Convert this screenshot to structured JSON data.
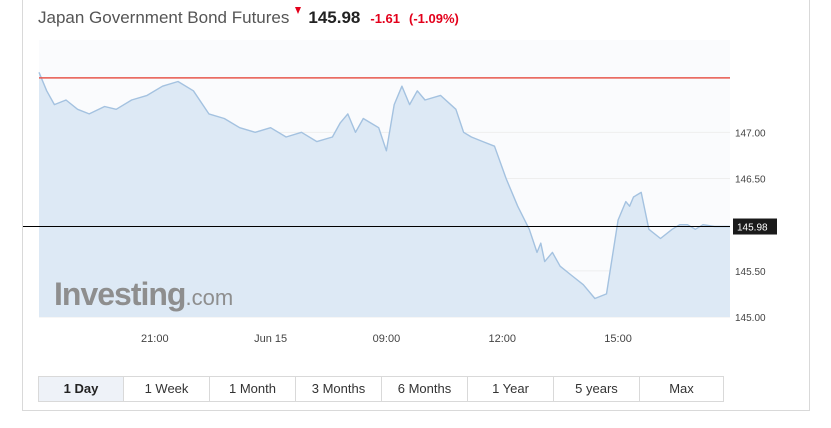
{
  "header": {
    "title": "Japan Government Bond Futures",
    "price": "145.98",
    "change": "-1.61",
    "change_pct": "(-1.09%)",
    "direction_icon": "down-arrow-icon"
  },
  "logo": {
    "brand": "Investing",
    "suffix": ".com"
  },
  "tabs": [
    {
      "label": "1 Day",
      "active": true
    },
    {
      "label": "1 Week",
      "active": false
    },
    {
      "label": "1 Month",
      "active": false
    },
    {
      "label": "3 Months",
      "active": false
    },
    {
      "label": "6 Months",
      "active": false
    },
    {
      "label": "1 Year",
      "active": false
    },
    {
      "label": "5 years",
      "active": false
    },
    {
      "label": "Max",
      "active": false
    }
  ],
  "colors": {
    "line": "#a4c2e0",
    "area": "#dde9f5",
    "previous_close_line": "#e8574d",
    "current_price_line": "#000000",
    "label_bg": "#1a1a1a",
    "axis_text": "#444444",
    "grid": "#eeeeee",
    "negative": "#e3001b"
  },
  "chart_data": {
    "type": "area",
    "title": "Japan Government Bond Futures",
    "xlabel": "",
    "ylabel": "",
    "x_ticks": [
      "21:00",
      "Jun 15",
      "09:00",
      "12:00",
      "15:00"
    ],
    "x_tick_pos": [
      3,
      6,
      9,
      12,
      15
    ],
    "y_ticks": [
      145.0,
      145.5,
      146.5,
      147.0
    ],
    "y_tick_labels": [
      "145.00",
      "145.50",
      "146.50",
      "147.00"
    ],
    "ylim": [
      145.0,
      148.0
    ],
    "xlim": [
      0,
      17.9
    ],
    "previous_close": 147.59,
    "current_price": 145.98,
    "current_price_label": "145.98",
    "grid": true,
    "x": [
      0.0,
      0.2,
      0.4,
      0.7,
      1.0,
      1.3,
      1.7,
      2.0,
      2.4,
      2.8,
      3.2,
      3.6,
      4.0,
      4.4,
      4.8,
      5.2,
      5.6,
      6.0,
      6.4,
      6.8,
      7.2,
      7.6,
      7.8,
      8.0,
      8.2,
      8.4,
      8.6,
      8.8,
      9.0,
      9.2,
      9.4,
      9.6,
      9.8,
      10.0,
      10.4,
      10.8,
      11.0,
      11.2,
      11.5,
      11.8,
      12.1,
      12.4,
      12.7,
      12.9,
      13.0,
      13.1,
      13.3,
      13.5,
      13.8,
      14.1,
      14.4,
      14.7,
      15.0,
      15.2,
      15.3,
      15.4,
      15.6,
      15.8,
      16.1,
      16.4,
      16.6,
      16.8,
      17.0,
      17.2,
      17.5,
      17.9
    ],
    "values": [
      147.65,
      147.45,
      147.3,
      147.35,
      147.25,
      147.2,
      147.28,
      147.25,
      147.35,
      147.4,
      147.5,
      147.55,
      147.45,
      147.2,
      147.15,
      147.05,
      147.0,
      147.05,
      146.95,
      147.0,
      146.9,
      146.95,
      147.1,
      147.2,
      147.0,
      147.15,
      147.1,
      147.05,
      146.8,
      147.3,
      147.5,
      147.3,
      147.45,
      147.35,
      147.4,
      147.25,
      147.0,
      146.95,
      146.9,
      146.85,
      146.5,
      146.2,
      145.95,
      145.7,
      145.8,
      145.6,
      145.7,
      145.55,
      145.45,
      145.35,
      145.2,
      145.25,
      146.05,
      146.25,
      146.2,
      146.3,
      146.35,
      145.95,
      145.85,
      145.95,
      146.0,
      146.0,
      145.95,
      146.0,
      145.98,
      145.98
    ]
  }
}
